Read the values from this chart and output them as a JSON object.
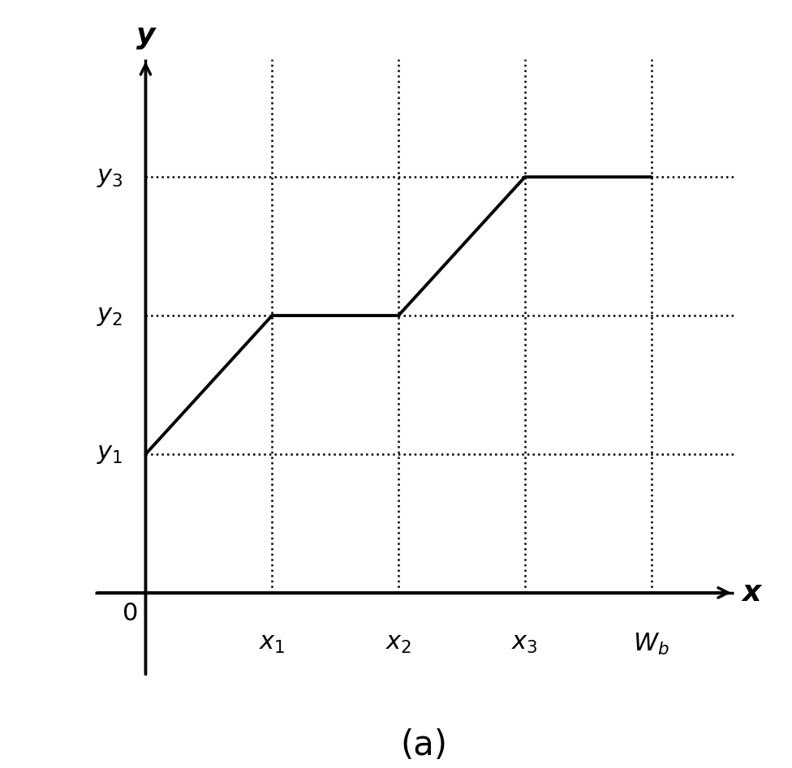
{
  "x_tick_positions": [
    1,
    2,
    3,
    4
  ],
  "x_tick_labels": [
    "$x_1$",
    "$x_2$",
    "$x_3$",
    "$W_b$"
  ],
  "y_tick_positions": [
    1,
    2,
    3
  ],
  "y_tick_labels": [
    "$y_1$",
    "$y_2$",
    "$y_3$"
  ],
  "line_x": [
    0,
    1,
    2,
    3,
    4
  ],
  "line_y": [
    1,
    2,
    2,
    3,
    3
  ],
  "xlim": [
    -0.4,
    4.8
  ],
  "ylim": [
    -0.6,
    4.0
  ],
  "axis_x_end": 4.65,
  "axis_y_end": 3.85,
  "dot_style": ":",
  "dot_color": "#000000",
  "line_color": "#000000",
  "line_width": 2.8,
  "dot_linewidth": 1.8,
  "axis_lw": 2.5,
  "arrow_mutation_scale": 22,
  "caption": "(a)",
  "caption_fontsize": 30,
  "label_fontsize": 26,
  "tick_fontsize": 22,
  "background_color": "#ffffff"
}
